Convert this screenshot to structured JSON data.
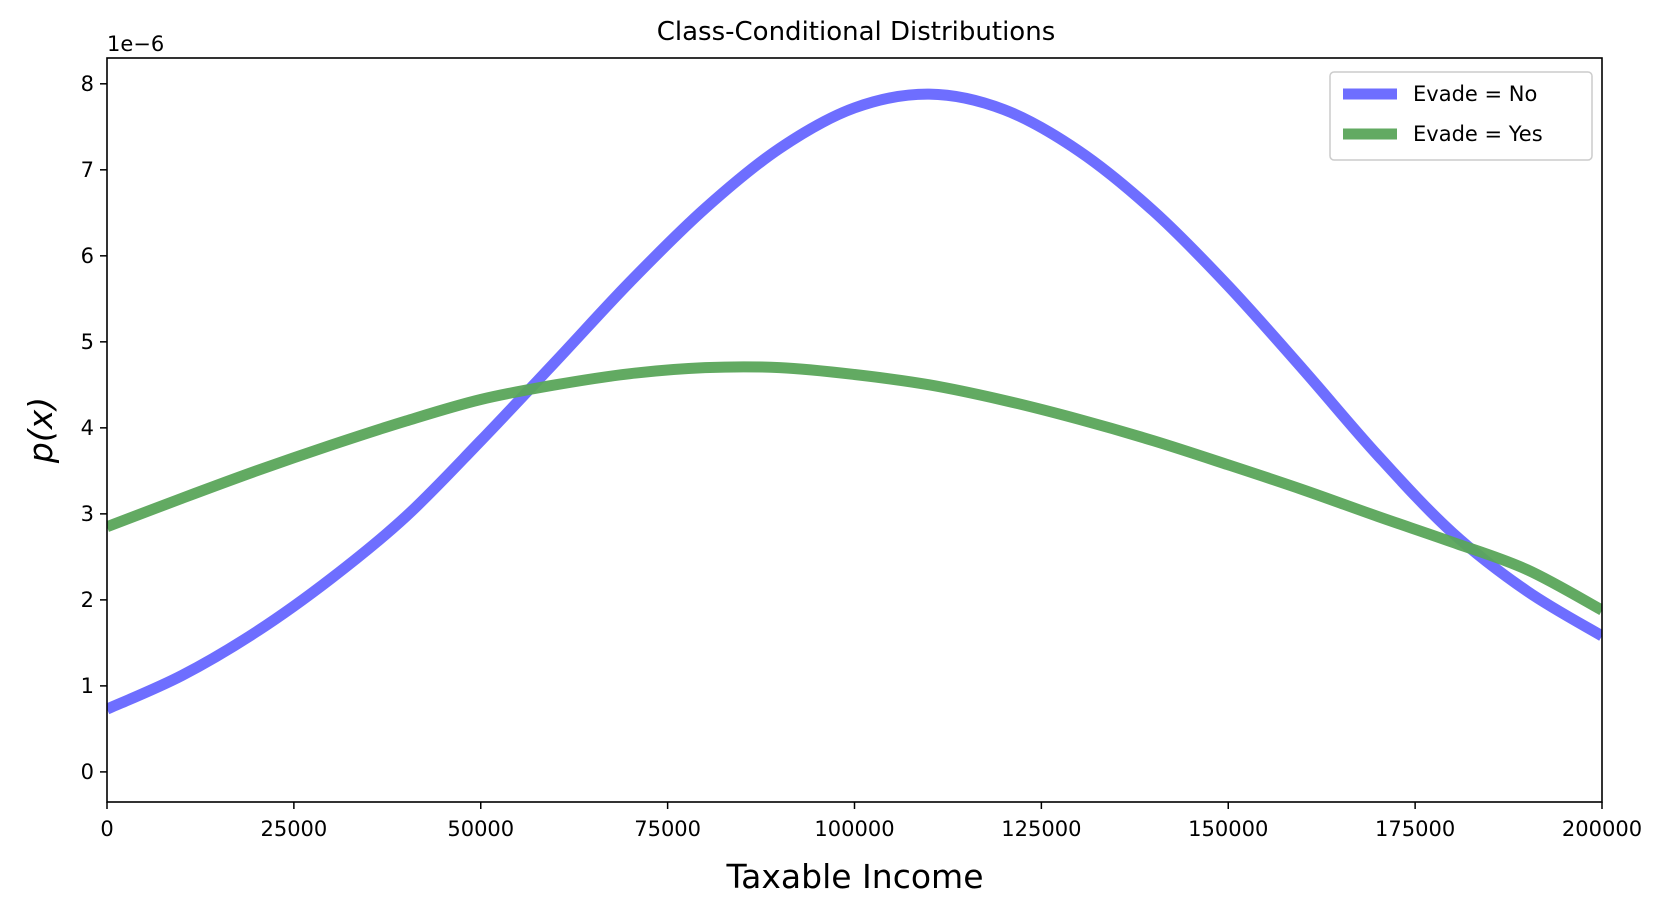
{
  "chart_data": {
    "type": "line",
    "title": "Class-Conditional Distributions",
    "xlabel": "Taxable Income",
    "ylabel": "p(x)",
    "y_offset_label": "1e−6",
    "y_scale": 1e-06,
    "xlim": [
      0,
      200000
    ],
    "ylim": [
      -0.35,
      8.3
    ],
    "x_ticks": [
      0,
      25000,
      50000,
      75000,
      100000,
      125000,
      150000,
      175000,
      200000
    ],
    "x_tick_labels": [
      "0",
      "25000",
      "50000",
      "75000",
      "100000",
      "125000",
      "150000",
      "175000",
      "200000"
    ],
    "y_ticks": [
      0,
      1,
      2,
      3,
      4,
      5,
      6,
      7,
      8
    ],
    "y_tick_labels": [
      "0",
      "1",
      "2",
      "3",
      "4",
      "5",
      "6",
      "7",
      "8"
    ],
    "grid": false,
    "legend_position": "top-right",
    "series": [
      {
        "name": "Evade = No",
        "color": "#6666ff",
        "x": [
          0,
          10000,
          20000,
          30000,
          40000,
          50000,
          60000,
          70000,
          80000,
          90000,
          100000,
          110000,
          120000,
          130000,
          140000,
          150000,
          160000,
          170000,
          180000,
          190000,
          200000
        ],
        "values": [
          0.73,
          1.12,
          1.63,
          2.25,
          2.97,
          3.85,
          4.77,
          5.7,
          6.55,
          7.25,
          7.72,
          7.88,
          7.7,
          7.22,
          6.52,
          5.65,
          4.68,
          3.68,
          2.78,
          2.1,
          1.58
        ]
      },
      {
        "name": "Evade = Yes",
        "color": "#5aa55a",
        "x": [
          0,
          10000,
          20000,
          30000,
          40000,
          50000,
          60000,
          70000,
          80000,
          90000,
          100000,
          110000,
          120000,
          130000,
          140000,
          150000,
          160000,
          170000,
          180000,
          190000,
          200000
        ],
        "values": [
          2.85,
          3.18,
          3.5,
          3.8,
          4.08,
          4.33,
          4.5,
          4.63,
          4.7,
          4.7,
          4.62,
          4.5,
          4.32,
          4.1,
          3.85,
          3.57,
          3.28,
          2.97,
          2.67,
          2.35,
          1.88
        ]
      }
    ]
  }
}
